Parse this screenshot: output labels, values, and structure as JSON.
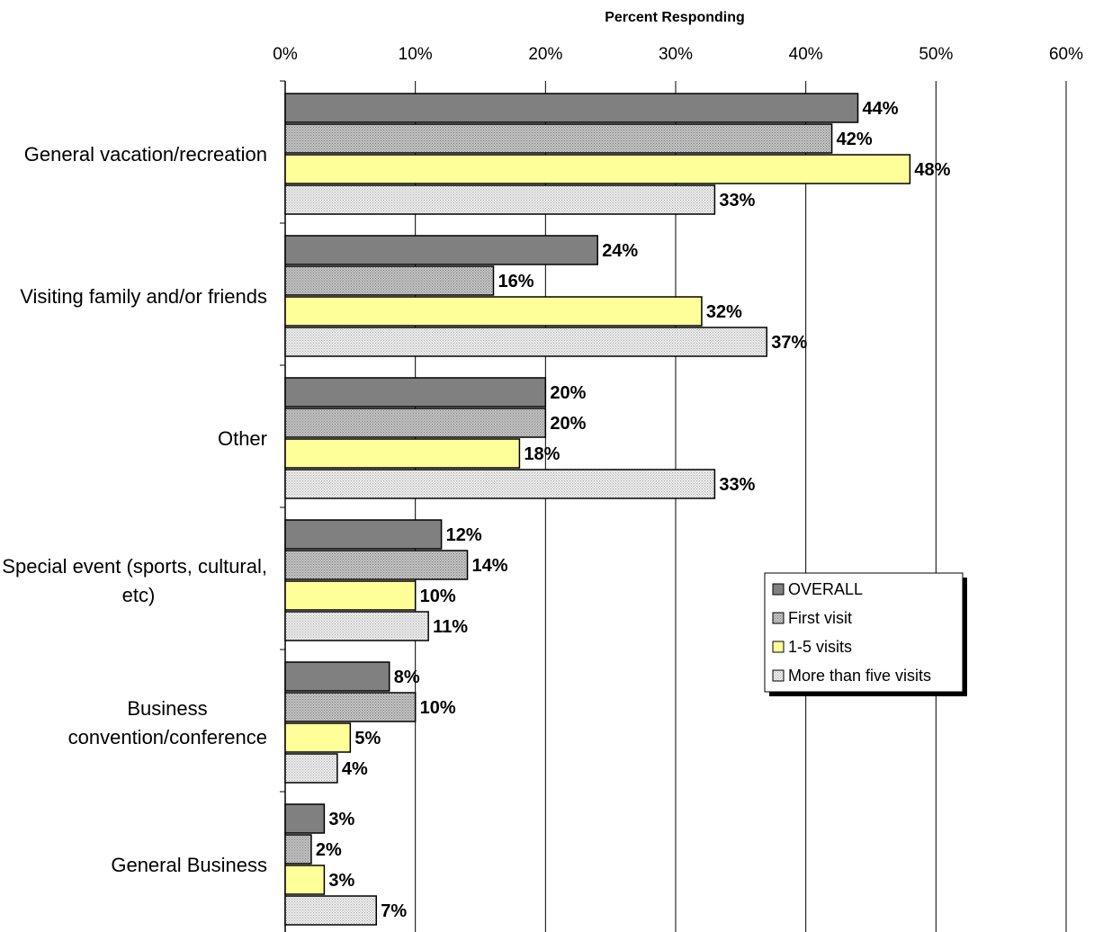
{
  "chart_data": {
    "type": "bar",
    "orientation": "horizontal",
    "title": "",
    "xlabel": "Percent Responding",
    "ylabel": "",
    "xlim": [
      0,
      60
    ],
    "x_ticks": [
      "0%",
      "10%",
      "20%",
      "30%",
      "40%",
      "50%",
      "60%"
    ],
    "grid": true,
    "legend_position": "right",
    "categories": [
      [
        "General vacation/recreation"
      ],
      [
        "Visiting family and/or friends"
      ],
      [
        "Other"
      ],
      [
        "Special event (sports, cultural,",
        "etc)"
      ],
      [
        "Business",
        "convention/conference"
      ],
      [
        "General Business"
      ]
    ],
    "series": [
      {
        "name": "OVERALL",
        "color": "#808080",
        "pattern": "solid",
        "values": [
          44,
          24,
          20,
          12,
          8,
          3
        ],
        "labels": [
          "44%",
          "24%",
          "20%",
          "12%",
          "8%",
          "3%"
        ]
      },
      {
        "name": "First visit",
        "color": "#b0b0b0",
        "pattern": "dots",
        "values": [
          42,
          16,
          20,
          14,
          10,
          2
        ],
        "labels": [
          "42%",
          "16%",
          "20%",
          "14%",
          "10%",
          "2%"
        ]
      },
      {
        "name": "1-5 visits",
        "color": "#ffff99",
        "pattern": "solid",
        "values": [
          48,
          32,
          18,
          10,
          5,
          3
        ],
        "labels": [
          "48%",
          "32%",
          "18%",
          "10%",
          "5%",
          "3%"
        ]
      },
      {
        "name": "More than five visits",
        "color": "#e4e4e4",
        "pattern": "dots",
        "values": [
          33,
          37,
          33,
          11,
          4,
          7
        ],
        "labels": [
          "33%",
          "37%",
          "33%",
          "11%",
          "4%",
          "7%"
        ]
      }
    ]
  }
}
